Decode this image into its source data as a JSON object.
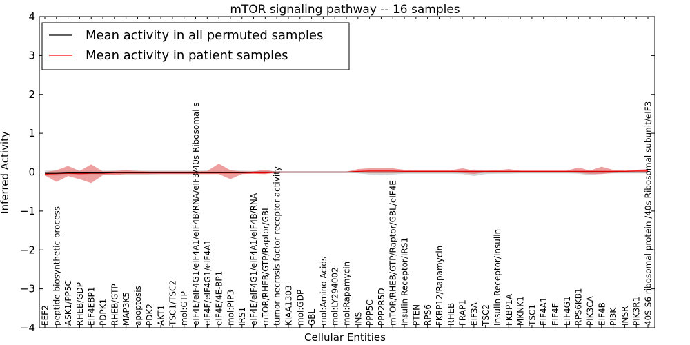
{
  "chart_data": {
    "type": "line",
    "title": "mTOR signaling pathway -- 16 samples",
    "xlabel": "Cellular Entities",
    "ylabel": "Inferred Activity",
    "ylim": [
      -4,
      4
    ],
    "yticks": [
      -4,
      -3,
      -2,
      -1,
      0,
      1,
      2,
      3,
      4
    ],
    "grid": false,
    "legend_position": "top-left",
    "categories": [
      "EEF2",
      "peptide biosynthetic process",
      "ASK1/PP5C",
      "RHEB/GDP",
      "EIF4EBP1",
      "PDPK1",
      "RHEB/GTP",
      "MAP3K5",
      "apoptosis",
      "PDK2",
      "AKT1",
      "TSC1/TSC2",
      "mol:GTP",
      "eIF4E/eIF4G1/eIF4A1/eIF4B/RNA/eIF3/40s Ribosomal s",
      "eIF4E/eIF4G1/eIF4A1",
      "eIF4E/4E-BP1",
      "mol:PIP3",
      "IRS1",
      "eIF4E/eIF4G1/eIF4A1/eIF4B/RNA",
      "mTOR/RHEB/GTP/Raptor/GBL",
      "tumor necrosis factor receptor activity",
      "KIAA1303",
      "mol:GDP",
      "GBL",
      "mol:Amino Acids",
      "mol:LY294002",
      "mol:Rapamycin",
      "INS",
      "PPP5C",
      "PPP2R5D",
      "mTOR/RHEB/GTP/Raptor/GBL/eIF4E",
      "Insulin Receptor/IRS1",
      "PTEN",
      "RPS6",
      "FKBP12/Rapamycin",
      "RHEB",
      "FRAP1",
      "EIF3A",
      "TSC2",
      "Insulin Receptor/Insulin",
      "FKBP1A",
      "MKNK1",
      "TSC1",
      "EIF4A1",
      "EIF4E",
      "EIF4G1",
      "RPS6KB1",
      "PIK3CA",
      "EIF4B",
      "PI3K",
      "INSR",
      "PIK3R1",
      "40S S6 ribosomal protein /40s Ribosomal subunit/eIF3"
    ],
    "series": [
      {
        "name": "Mean activity in all permuted samples",
        "color": "#000000",
        "band_color": "#bbbbbb",
        "values": [
          -0.03,
          -0.03,
          -0.02,
          -0.02,
          -0.02,
          -0.02,
          -0.01,
          -0.01,
          -0.01,
          -0.01,
          -0.01,
          -0.01,
          -0.01,
          -0.01,
          -0.01,
          -0.01,
          -0.01,
          -0.01,
          0.0,
          0.0,
          0.0,
          0.0,
          0.0,
          0.0,
          0.0,
          0.0,
          0.0,
          0.0,
          0.0,
          0.0,
          0.0,
          0.0,
          0.0,
          0.0,
          0.0,
          0.0,
          0.0,
          0.0,
          0.0,
          0.0,
          0.0,
          0.0,
          0.0,
          0.0,
          0.0,
          0.0,
          0.0,
          0.0,
          0.0,
          0.0,
          0.0,
          0.0,
          0.0
        ],
        "lower": [
          -0.1,
          -0.1,
          -0.08,
          -0.08,
          -0.07,
          -0.07,
          -0.06,
          -0.06,
          -0.06,
          -0.06,
          -0.05,
          -0.05,
          -0.05,
          -0.05,
          -0.05,
          -0.04,
          -0.04,
          -0.04,
          -0.03,
          -0.03,
          -0.02,
          -0.02,
          -0.02,
          -0.02,
          -0.02,
          -0.02,
          -0.02,
          -0.03,
          -0.06,
          -0.08,
          -0.06,
          -0.04,
          -0.04,
          -0.04,
          -0.04,
          -0.04,
          -0.05,
          -0.1,
          -0.05,
          -0.04,
          -0.04,
          -0.03,
          -0.03,
          -0.03,
          -0.03,
          -0.03,
          -0.04,
          -0.08,
          -0.04,
          -0.03,
          -0.03,
          -0.03,
          -0.03
        ],
        "upper": [
          0.04,
          0.04,
          0.04,
          0.04,
          0.04,
          0.04,
          0.04,
          0.04,
          0.04,
          0.04,
          0.04,
          0.04,
          0.04,
          0.04,
          0.04,
          0.04,
          0.04,
          0.04,
          0.03,
          0.03,
          0.02,
          0.02,
          0.02,
          0.02,
          0.02,
          0.02,
          0.02,
          0.03,
          0.05,
          0.06,
          0.05,
          0.04,
          0.04,
          0.04,
          0.04,
          0.04,
          0.04,
          0.07,
          0.04,
          0.04,
          0.04,
          0.03,
          0.03,
          0.03,
          0.03,
          0.03,
          0.04,
          0.06,
          0.04,
          0.03,
          0.03,
          0.03,
          0.03
        ]
      },
      {
        "name": "Mean activity in patient samples",
        "color": "#ff0000",
        "band_color": "#e88080",
        "values": [
          -0.05,
          -0.04,
          -0.03,
          -0.04,
          -0.03,
          -0.03,
          -0.02,
          -0.02,
          -0.02,
          -0.02,
          -0.02,
          -0.02,
          -0.02,
          -0.02,
          -0.02,
          -0.02,
          -0.02,
          -0.02,
          -0.02,
          -0.02,
          0.0,
          0.0,
          0.0,
          0.0,
          0.0,
          0.0,
          0.0,
          0.02,
          0.03,
          0.03,
          0.03,
          0.02,
          0.02,
          0.02,
          0.02,
          0.02,
          0.02,
          0.02,
          0.02,
          0.02,
          0.02,
          0.02,
          0.02,
          0.02,
          0.02,
          0.02,
          0.02,
          0.02,
          0.02,
          0.02,
          0.02,
          0.03,
          0.03
        ],
        "lower": [
          -0.08,
          -0.25,
          -0.1,
          -0.18,
          -0.28,
          -0.08,
          -0.08,
          -0.05,
          -0.05,
          -0.05,
          -0.05,
          -0.05,
          -0.05,
          -0.05,
          -0.05,
          -0.05,
          -0.18,
          -0.05,
          -0.04,
          -0.05,
          -0.02,
          -0.01,
          -0.01,
          -0.01,
          -0.01,
          -0.01,
          -0.01,
          0.0,
          -0.02,
          -0.02,
          -0.02,
          -0.01,
          0.0,
          0.0,
          0.0,
          0.0,
          -0.02,
          -0.05,
          0.0,
          0.0,
          0.0,
          0.0,
          0.0,
          0.0,
          0.0,
          0.0,
          -0.02,
          -0.05,
          -0.05,
          -0.02,
          0.0,
          0.0,
          0.0
        ],
        "upper": [
          0.0,
          0.05,
          0.16,
          0.03,
          0.2,
          0.02,
          0.03,
          0.05,
          0.03,
          0.02,
          0.02,
          0.02,
          0.02,
          0.02,
          0.03,
          0.22,
          0.05,
          0.02,
          0.02,
          0.06,
          0.01,
          0.01,
          0.01,
          0.01,
          0.01,
          0.01,
          0.01,
          0.08,
          0.1,
          0.1,
          0.1,
          0.06,
          0.05,
          0.05,
          0.05,
          0.05,
          0.1,
          0.04,
          0.04,
          0.05,
          0.08,
          0.04,
          0.04,
          0.04,
          0.04,
          0.04,
          0.12,
          0.04,
          0.14,
          0.06,
          0.04,
          0.06,
          0.08
        ]
      }
    ]
  }
}
